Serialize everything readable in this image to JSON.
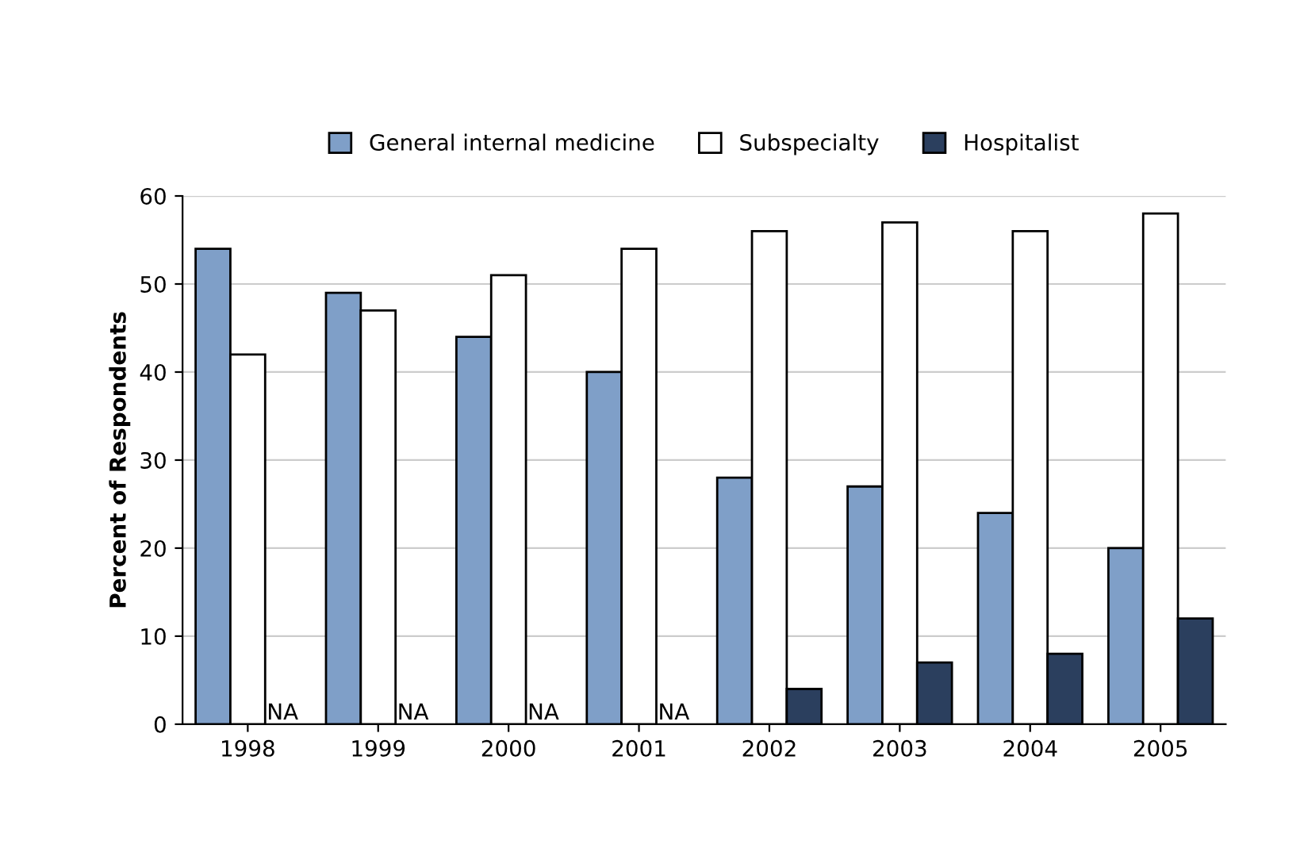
{
  "chart_data": {
    "type": "bar",
    "ylabel": "Percent of Respondents",
    "categories": [
      "1998",
      "1999",
      "2000",
      "2001",
      "2002",
      "2003",
      "2004",
      "2005"
    ],
    "series": [
      {
        "name": "General internal medicine",
        "color": "#7f9fc8",
        "values": [
          54,
          49,
          44,
          40,
          28,
          27,
          24,
          20
        ]
      },
      {
        "name": "Subspecialty",
        "color": "#ffffff",
        "values": [
          42,
          47,
          51,
          54,
          56,
          57,
          56,
          58
        ]
      },
      {
        "name": "Hospitalist",
        "color": "#2b3f5e",
        "values": [
          null,
          null,
          null,
          null,
          4,
          7,
          8,
          12
        ],
        "value_labels": [
          "NA",
          "NA",
          "NA",
          "NA",
          null,
          null,
          null,
          null
        ]
      }
    ],
    "ylim": [
      0,
      60
    ],
    "yticks": [
      0,
      10,
      20,
      30,
      40,
      50,
      60
    ],
    "grid": "y",
    "legend": "top"
  }
}
